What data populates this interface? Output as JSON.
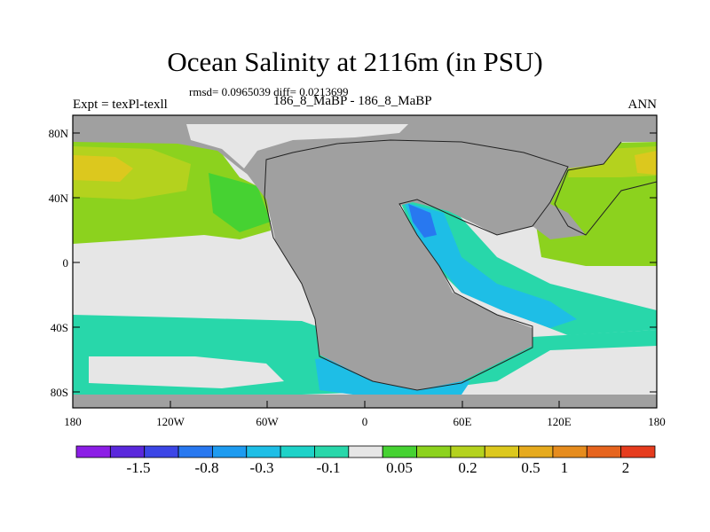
{
  "title": "Ocean Salinity at 2116m (in PSU)",
  "stats": "rmsd= 0.0965039 diff= 0.0213699",
  "comparison": "186_8_MaBP - 186_8_MaBP",
  "experiment": "Expt = texPl-texll",
  "season": "ANN",
  "lat_ticks": [
    "80N",
    "40N",
    "0",
    "40S",
    "80S"
  ],
  "lon_ticks": [
    "180",
    "120W",
    "60W",
    "0",
    "60E",
    "120E",
    "180"
  ],
  "colorbar": {
    "colors": [
      "#8c1ee6",
      "#5a28dc",
      "#3c46e6",
      "#2878f0",
      "#1e9bf0",
      "#1ebee6",
      "#1ed2c8",
      "#28d7aa",
      "#e6e6e6",
      "#46d232",
      "#8cd21e",
      "#b4d21e",
      "#dcc81e",
      "#e6aa1e",
      "#e68c1e",
      "#e6641e",
      "#e63c1e"
    ],
    "labels": [
      "-1.5",
      "-0.8",
      "-0.3",
      "-0.1",
      "0.05",
      "0.2",
      "0.5",
      "1",
      "2"
    ]
  },
  "map_colors": {
    "land": "#a0a0a0",
    "near_zero": "#e6e6e6",
    "teal": "#28d7aa",
    "cyan": "#1ebee6",
    "blue": "#2878f0",
    "green": "#8cd21e",
    "lightgreen": "#46d232",
    "yellow": "#b4d21e",
    "orange": "#dcc81e"
  }
}
